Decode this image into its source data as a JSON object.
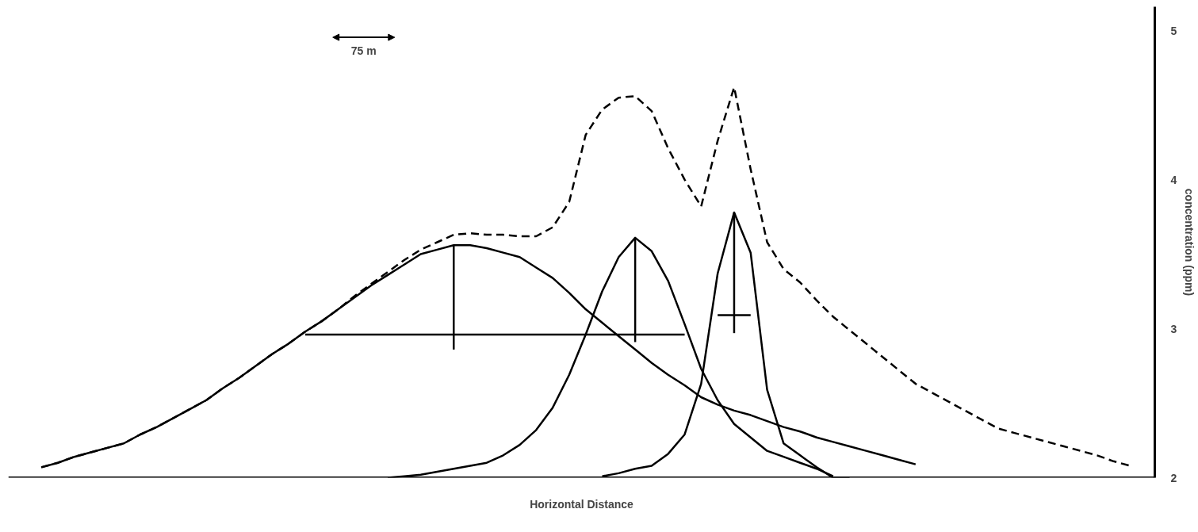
{
  "chart_data": {
    "type": "line",
    "xlabel": "Horizontal Distance",
    "ylabel": "concentration (ppm)",
    "annotations": [
      "75 m"
    ],
    "categories": [
      null,
      null,
      null,
      null,
      null,
      null,
      null,
      null,
      null,
      null,
      null,
      null,
      null,
      null,
      null,
      null,
      null,
      null,
      null,
      null,
      null,
      null,
      null,
      null,
      null,
      null,
      null,
      null,
      null,
      null,
      null,
      null,
      null,
      null,
      null,
      null,
      null,
      null,
      null,
      null,
      null,
      null,
      null,
      null,
      null,
      null,
      null,
      null,
      null,
      null,
      null,
      null,
      null,
      null,
      null,
      null,
      null,
      null,
      null,
      null,
      null,
      null,
      null,
      null,
      null,
      null,
      null,
      null,
      null
    ],
    "ylim": [
      2,
      5.16
    ],
    "yticks": [
      2,
      3,
      4,
      5
    ],
    "tick_labels": "y",
    "marker": "none",
    "ref_lines": [
      {
        "axis": "y",
        "value": 2,
        "color": "#000000"
      }
    ],
    "series": [
      {
        "color": "#000000",
        "values": [
          null,
          2.07,
          2.1,
          2.14,
          2.17,
          2.2,
          2.23,
          2.29,
          2.34,
          2.4,
          2.46,
          2.52,
          2.6,
          2.67,
          2.75,
          2.83,
          2.9,
          2.98,
          3.05,
          3.13,
          3.21,
          3.29,
          3.36,
          3.43,
          3.5,
          3.53,
          3.56,
          3.56,
          3.54,
          3.51,
          3.48,
          3.41,
          3.34,
          3.24,
          3.13,
          3.04,
          2.95,
          2.86,
          2.77,
          2.69,
          2.62,
          2.54,
          2.49,
          2.45,
          2.42,
          2.38,
          2.34,
          2.31,
          2.27,
          2.24,
          2.21,
          2.18,
          2.15,
          2.12,
          2.09,
          null,
          null,
          null,
          null,
          null,
          null,
          null,
          null,
          null,
          null,
          null,
          null,
          null,
          null
        ],
        "errors": [
          null,
          null,
          null,
          null,
          null,
          null,
          null,
          null,
          null,
          null,
          null,
          null,
          null,
          null,
          null,
          null,
          null,
          null,
          null,
          null,
          null,
          null,
          null,
          null,
          null,
          null,
          [
            2.86,
            3.56
          ],
          null,
          null,
          null,
          null,
          null,
          null,
          null,
          null,
          null,
          null,
          null,
          null,
          null,
          null,
          null,
          null,
          null,
          null,
          null,
          null,
          null,
          null,
          null,
          null,
          null,
          null,
          null,
          null,
          null,
          null,
          null,
          null,
          null,
          null,
          null,
          null,
          null,
          null,
          null,
          null,
          null,
          null
        ]
      },
      {
        "color": "#000000",
        "values": [
          null,
          null,
          null,
          null,
          null,
          null,
          null,
          null,
          null,
          null,
          null,
          null,
          null,
          null,
          null,
          null,
          null,
          null,
          null,
          null,
          null,
          null,
          2.0,
          2.01,
          2.02,
          2.04,
          2.06,
          2.08,
          2.1,
          2.15,
          2.22,
          2.32,
          2.47,
          2.69,
          2.96,
          3.25,
          3.48,
          3.61,
          3.52,
          3.32,
          3.03,
          2.73,
          2.52,
          2.36,
          2.27,
          2.18,
          2.14,
          2.1,
          2.06,
          2.01,
          null,
          null,
          null,
          null,
          null,
          null,
          null,
          null,
          null,
          null,
          null,
          null,
          null,
          null,
          null,
          null,
          null,
          null,
          null
        ],
        "errors": [
          null,
          null,
          null,
          null,
          null,
          null,
          null,
          null,
          null,
          null,
          null,
          null,
          null,
          null,
          null,
          null,
          null,
          null,
          null,
          null,
          null,
          null,
          null,
          null,
          null,
          null,
          null,
          null,
          null,
          null,
          null,
          null,
          null,
          null,
          null,
          null,
          null,
          [
            2.91,
            3.61
          ],
          null,
          null,
          null,
          null,
          null,
          null,
          null,
          null,
          null,
          null,
          null,
          null,
          null,
          null,
          null,
          null,
          null,
          null,
          null,
          null,
          null,
          null,
          null,
          null,
          null,
          null,
          null,
          null,
          null,
          null,
          null
        ]
      },
      {
        "color": "#000000",
        "values": [
          null,
          null,
          null,
          null,
          null,
          null,
          null,
          null,
          null,
          null,
          null,
          null,
          null,
          null,
          null,
          null,
          null,
          null,
          null,
          null,
          null,
          null,
          null,
          null,
          null,
          null,
          null,
          null,
          null,
          null,
          null,
          null,
          null,
          null,
          null,
          2.01,
          2.03,
          2.06,
          2.08,
          2.16,
          2.29,
          2.63,
          3.37,
          3.78,
          3.51,
          2.59,
          2.23,
          2.15,
          2.07,
          2.0,
          2.0,
          null,
          null,
          null,
          null,
          null,
          null,
          null,
          null,
          null,
          null,
          null,
          null,
          null,
          null,
          null,
          null,
          null,
          null
        ],
        "errors": [
          null,
          null,
          null,
          null,
          null,
          null,
          null,
          null,
          null,
          null,
          null,
          null,
          null,
          null,
          null,
          null,
          null,
          null,
          null,
          null,
          null,
          null,
          null,
          null,
          null,
          null,
          null,
          null,
          null,
          null,
          null,
          null,
          null,
          null,
          null,
          null,
          null,
          null,
          null,
          null,
          null,
          null,
          null,
          [
            2.97,
            3.78
          ],
          null,
          null,
          null,
          null,
          null,
          null,
          null,
          null,
          null,
          null,
          null,
          null,
          null,
          null,
          null,
          null,
          null,
          null,
          null,
          null,
          null,
          null,
          null,
          null,
          null
        ]
      },
      {
        "color": "#000000",
        "line_style": "dashed",
        "values": [
          null,
          2.07,
          2.1,
          2.14,
          2.17,
          2.2,
          2.23,
          2.29,
          2.34,
          2.4,
          2.46,
          2.52,
          2.6,
          2.67,
          2.75,
          2.83,
          2.9,
          2.98,
          3.05,
          3.13,
          3.22,
          3.3,
          3.38,
          3.46,
          3.53,
          3.58,
          3.63,
          3.64,
          3.63,
          3.63,
          3.62,
          3.62,
          3.68,
          3.85,
          4.3,
          4.47,
          4.55,
          4.56,
          4.46,
          4.21,
          4.0,
          3.82,
          4.26,
          4.62,
          4.07,
          3.58,
          3.4,
          3.31,
          3.19,
          3.08,
          2.99,
          2.9,
          2.81,
          2.72,
          2.63,
          2.57,
          2.51,
          2.45,
          2.39,
          2.33,
          2.3,
          2.27,
          2.24,
          2.21,
          2.18,
          2.15,
          2.11,
          2.08,
          null
        ]
      },
      {
        "color": "#000000",
        "values": [
          null,
          null,
          null,
          null,
          null,
          null,
          null,
          null,
          null,
          null,
          null,
          null,
          null,
          null,
          null,
          null,
          null,
          2.96,
          2.96,
          2.96,
          2.96,
          2.96,
          2.96,
          2.96,
          2.96,
          2.96,
          2.96,
          2.96,
          2.96,
          2.96,
          2.96,
          2.96,
          2.96,
          2.96,
          2.96,
          2.96,
          2.96,
          2.96,
          2.96,
          2.96,
          2.96,
          null,
          null,
          null,
          null,
          null,
          null,
          null,
          null,
          null,
          null,
          null,
          null,
          null,
          null,
          null,
          null,
          null,
          null,
          null,
          null,
          null,
          null,
          null,
          null,
          null,
          null,
          null,
          null
        ]
      },
      {
        "color": "#000000",
        "values": [
          null,
          null,
          null,
          null,
          null,
          null,
          null,
          null,
          null,
          null,
          null,
          null,
          null,
          null,
          null,
          null,
          null,
          null,
          null,
          null,
          null,
          null,
          null,
          null,
          null,
          null,
          null,
          null,
          null,
          null,
          null,
          null,
          null,
          null,
          null,
          null,
          null,
          null,
          null,
          null,
          null,
          null,
          3.09,
          3.09,
          3.09,
          null,
          null,
          null,
          null,
          null,
          null,
          null,
          null,
          null,
          null,
          null,
          null,
          null,
          null,
          null,
          null,
          null,
          null,
          null,
          null,
          null,
          null,
          null,
          null
        ]
      }
    ]
  }
}
